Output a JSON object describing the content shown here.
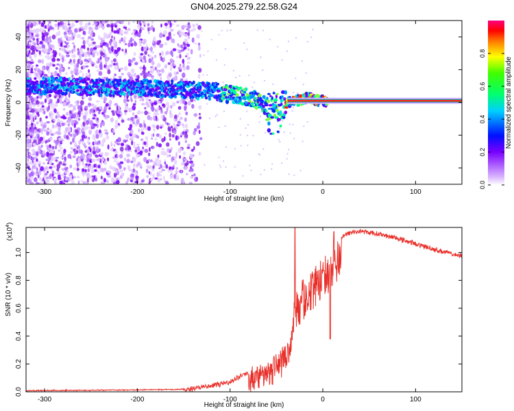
{
  "title": "GN04.2025.279.22.58.G24",
  "chart_data": [
    {
      "type": "heatmap",
      "name": "spectrogram",
      "xlabel": "Height of straight line (km)",
      "ylabel": "Frequency (Hz)",
      "xlim": [
        -320,
        150
      ],
      "ylim": [
        -50,
        50
      ],
      "xticks": [
        -300,
        -200,
        -100,
        0,
        100
      ],
      "yticks": [
        -40,
        -20,
        0,
        20,
        40
      ],
      "colorbar": {
        "label": "Normalized spectral amplitude",
        "range": [
          0,
          1
        ],
        "ticks": [
          0.0,
          0.2,
          0.4,
          0.6,
          0.8
        ],
        "tick_labels": [
          "0.0",
          "0.2",
          "0.4",
          "0.6",
          "0.8"
        ]
      },
      "ridge": {
        "x": [
          -320,
          -280,
          -240,
          -200,
          -160,
          -120,
          -100,
          -80,
          -70,
          -60,
          -50,
          -45,
          -40,
          -30,
          -20,
          -15,
          -10,
          -5,
          0,
          20,
          60,
          100,
          150
        ],
        "y": [
          10,
          10,
          9,
          9,
          8,
          7,
          5,
          3,
          1,
          -3,
          -2,
          -2,
          -1,
          1,
          2,
          3,
          2,
          1,
          1,
          1,
          1,
          1,
          1
        ]
      }
    },
    {
      "type": "line",
      "name": "snr",
      "xlabel": "Height of straight line (km)",
      "ylabel": "SNR (10 * v/v)",
      "scale_label": "(x10",
      "scale_exp": "4",
      "scale_close": ")",
      "xlim": [
        -320,
        150
      ],
      "ylim": [
        0,
        1.18
      ],
      "xticks": [
        -300,
        -200,
        -100,
        0,
        100
      ],
      "yticks": [
        0.0,
        0.2,
        0.4,
        0.6,
        0.8,
        1.0
      ],
      "ytick_labels": [
        "0.0",
        "0.2",
        "0.4",
        "0.6",
        "0.8",
        "1.0"
      ],
      "color": "#e8302a",
      "envelope": {
        "x": [
          -320,
          -200,
          -150,
          -120,
          -100,
          -80,
          -60,
          -45,
          -35,
          -30,
          -25,
          -20,
          -10,
          0,
          10,
          20,
          30,
          40,
          50,
          60,
          80,
          100,
          120,
          150
        ],
        "y": [
          0.01,
          0.015,
          0.02,
          0.05,
          0.08,
          0.15,
          0.22,
          0.3,
          0.4,
          0.7,
          0.75,
          0.8,
          0.9,
          0.95,
          1.05,
          1.12,
          1.15,
          1.16,
          1.15,
          1.14,
          1.11,
          1.07,
          1.03,
          0.98
        ]
      },
      "spikes": [
        {
          "x": -30,
          "y": 1.18
        },
        {
          "x": 8,
          "y": 0.38
        },
        {
          "x": 12,
          "y": 1.15
        }
      ]
    }
  ]
}
